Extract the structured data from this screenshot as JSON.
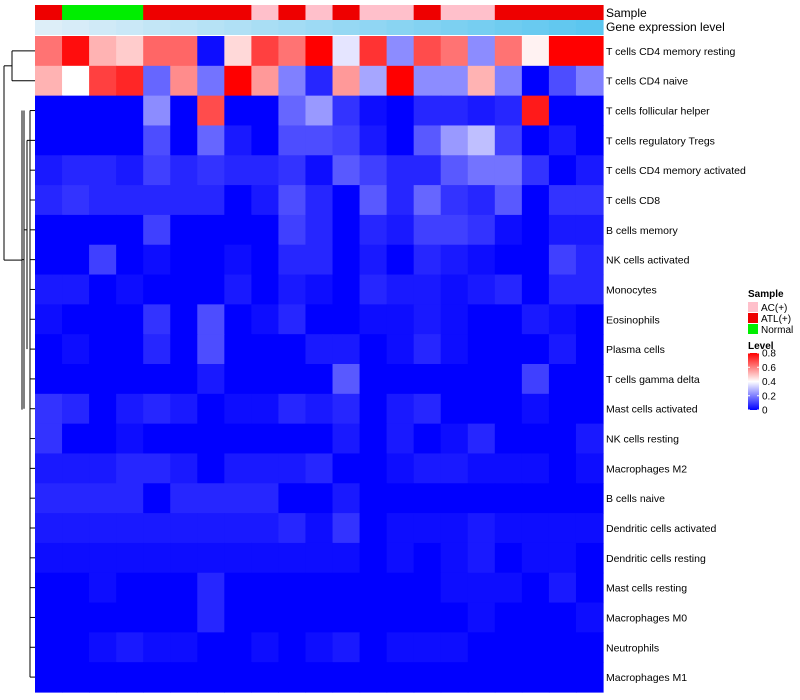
{
  "chart_data": {
    "type": "heatmap",
    "title": "",
    "annotation_tracks": [
      {
        "name": "Sample",
        "values": [
          "ATL(+)",
          "Normal",
          "Normal",
          "Normal",
          "ATL(+)",
          "ATL(+)",
          "ATL(+)",
          "ATL(+)",
          "AC(+)",
          "ATL(+)",
          "AC(+)",
          "ATL(+)",
          "AC(+)",
          "AC(+)",
          "ATL(+)",
          "AC(+)",
          "AC(+)",
          "ATL(+)",
          "ATL(+)",
          "ATL(+)",
          "ATL(+)"
        ]
      },
      {
        "name": "Gene expression level",
        "values": [
          0.0,
          0.05,
          0.1,
          0.15,
          0.2,
          0.25,
          0.3,
          0.35,
          0.4,
          0.45,
          0.5,
          0.55,
          0.6,
          0.65,
          0.7,
          0.75,
          0.8,
          0.85,
          0.9,
          0.95,
          1.0
        ]
      }
    ],
    "rows": [
      "T cells CD4 memory resting",
      "T cells CD4 naive",
      "T cells follicular helper",
      "T cells regulatory  Tregs",
      "T cells CD4 memory activated",
      "T cells CD8",
      "B cells memory",
      "NK cells activated",
      "Monocytes",
      "Eosinophils",
      "Plasma cells",
      "T cells gamma delta",
      "Mast cells activated",
      "NK cells resting",
      "Macrophages M2",
      "B cells naive",
      "Dendritic cells activated",
      "Dendritic cells resting",
      "Mast cells resting",
      "Macrophages M0",
      "Neutrophils",
      "Macrophages M1"
    ],
    "values": [
      [
        0.62,
        0.78,
        0.52,
        0.48,
        0.64,
        0.64,
        0.02,
        0.46,
        0.7,
        0.62,
        0.8,
        0.36,
        0.72,
        0.22,
        0.68,
        0.62,
        0.22,
        0.62,
        0.42,
        0.8,
        0.8
      ],
      [
        0.52,
        0.4,
        0.7,
        0.74,
        0.16,
        0.58,
        0.18,
        0.8,
        0.56,
        0.2,
        0.06,
        0.56,
        0.26,
        0.8,
        0.22,
        0.22,
        0.52,
        0.2,
        0.0,
        0.12,
        0.2
      ],
      [
        0.0,
        0.0,
        0.0,
        0.0,
        0.22,
        0.0,
        0.68,
        0.0,
        0.0,
        0.16,
        0.24,
        0.08,
        0.02,
        0.0,
        0.06,
        0.06,
        0.04,
        0.06,
        0.76,
        0.0,
        0.0
      ],
      [
        0.0,
        0.0,
        0.0,
        0.0,
        0.12,
        0.0,
        0.16,
        0.04,
        0.0,
        0.12,
        0.12,
        0.1,
        0.04,
        0.0,
        0.14,
        0.24,
        0.3,
        0.1,
        0.0,
        0.04,
        0.0
      ],
      [
        0.04,
        0.06,
        0.06,
        0.04,
        0.1,
        0.06,
        0.08,
        0.06,
        0.06,
        0.08,
        0.02,
        0.14,
        0.1,
        0.06,
        0.06,
        0.14,
        0.18,
        0.18,
        0.08,
        0.0,
        0.04
      ],
      [
        0.06,
        0.08,
        0.06,
        0.06,
        0.06,
        0.06,
        0.06,
        0.0,
        0.04,
        0.12,
        0.06,
        0.0,
        0.14,
        0.06,
        0.16,
        0.08,
        0.06,
        0.14,
        0.0,
        0.08,
        0.08
      ],
      [
        0.0,
        0.0,
        0.0,
        0.0,
        0.1,
        0.0,
        0.0,
        0.0,
        0.0,
        0.1,
        0.06,
        0.0,
        0.06,
        0.04,
        0.1,
        0.1,
        0.08,
        0.02,
        0.0,
        0.04,
        0.04
      ],
      [
        0.0,
        0.0,
        0.1,
        0.0,
        0.02,
        0.0,
        0.0,
        0.02,
        0.0,
        0.06,
        0.06,
        0.0,
        0.04,
        0.0,
        0.06,
        0.04,
        0.02,
        0.0,
        0.0,
        0.1,
        0.06
      ],
      [
        0.04,
        0.04,
        0.0,
        0.02,
        0.0,
        0.0,
        0.0,
        0.04,
        0.0,
        0.04,
        0.02,
        0.0,
        0.06,
        0.04,
        0.04,
        0.02,
        0.04,
        0.06,
        0.0,
        0.06,
        0.06
      ],
      [
        0.02,
        0.0,
        0.0,
        0.0,
        0.08,
        0.0,
        0.12,
        0.0,
        0.02,
        0.06,
        0.0,
        0.0,
        0.02,
        0.02,
        0.04,
        0.02,
        0.0,
        0.0,
        0.04,
        0.02,
        0.0
      ],
      [
        0.0,
        0.02,
        0.0,
        0.0,
        0.06,
        0.0,
        0.12,
        0.0,
        0.0,
        0.0,
        0.04,
        0.04,
        0.0,
        0.02,
        0.06,
        0.02,
        0.0,
        0.0,
        0.0,
        0.04,
        0.0
      ],
      [
        0.0,
        0.0,
        0.0,
        0.0,
        0.0,
        0.0,
        0.04,
        0.0,
        0.0,
        0.0,
        0.0,
        0.14,
        0.0,
        0.0,
        0.0,
        0.0,
        0.0,
        0.0,
        0.1,
        0.0,
        0.0
      ],
      [
        0.08,
        0.06,
        0.0,
        0.04,
        0.06,
        0.04,
        0.0,
        0.02,
        0.02,
        0.06,
        0.04,
        0.06,
        0.0,
        0.04,
        0.06,
        0.0,
        0.0,
        0.0,
        0.02,
        0.0,
        0.0
      ],
      [
        0.08,
        0.0,
        0.0,
        0.02,
        0.0,
        0.0,
        0.0,
        0.0,
        0.0,
        0.0,
        0.0,
        0.04,
        0.0,
        0.04,
        0.0,
        0.02,
        0.06,
        0.0,
        0.0,
        0.0,
        0.04
      ],
      [
        0.04,
        0.04,
        0.04,
        0.06,
        0.06,
        0.04,
        0.0,
        0.04,
        0.04,
        0.04,
        0.06,
        0.0,
        0.0,
        0.02,
        0.04,
        0.04,
        0.02,
        0.02,
        0.02,
        0.0,
        0.02
      ],
      [
        0.06,
        0.06,
        0.06,
        0.06,
        0.0,
        0.06,
        0.06,
        0.06,
        0.06,
        0.0,
        0.0,
        0.04,
        0.0,
        0.0,
        0.0,
        0.0,
        0.0,
        0.0,
        0.0,
        0.0,
        0.0
      ],
      [
        0.04,
        0.04,
        0.04,
        0.04,
        0.04,
        0.04,
        0.04,
        0.04,
        0.04,
        0.06,
        0.02,
        0.08,
        0.0,
        0.02,
        0.02,
        0.02,
        0.04,
        0.02,
        0.02,
        0.02,
        0.02
      ],
      [
        0.02,
        0.02,
        0.02,
        0.02,
        0.02,
        0.02,
        0.02,
        0.02,
        0.02,
        0.02,
        0.02,
        0.02,
        0.0,
        0.02,
        0.0,
        0.02,
        0.04,
        0.0,
        0.02,
        0.02,
        0.0
      ],
      [
        0.0,
        0.0,
        0.02,
        0.0,
        0.0,
        0.0,
        0.06,
        0.0,
        0.0,
        0.0,
        0.0,
        0.0,
        0.0,
        0.0,
        0.0,
        0.02,
        0.02,
        0.02,
        0.0,
        0.04,
        0.0
      ],
      [
        0.0,
        0.0,
        0.0,
        0.0,
        0.0,
        0.0,
        0.06,
        0.0,
        0.0,
        0.0,
        0.0,
        0.0,
        0.0,
        0.0,
        0.0,
        0.0,
        0.02,
        0.0,
        0.0,
        0.0,
        0.02
      ],
      [
        0.0,
        0.0,
        0.02,
        0.04,
        0.02,
        0.02,
        0.0,
        0.0,
        0.02,
        0.0,
        0.02,
        0.04,
        0.0,
        0.02,
        0.02,
        0.02,
        0.0,
        0.0,
        0.0,
        0.0,
        0.0
      ],
      [
        0.0,
        0.0,
        0.0,
        0.0,
        0.0,
        0.0,
        0.0,
        0.0,
        0.0,
        0.0,
        0.0,
        0.0,
        0.0,
        0.0,
        0.0,
        0.0,
        0.0,
        0.0,
        0.0,
        0.0,
        0.0
      ]
    ],
    "color_scale": {
      "low": "#0000ff",
      "mid": "#ffffff",
      "high": "#ff0000",
      "min": 0,
      "mid_value": 0.4,
      "max": 0.8
    },
    "annotation_colors": {
      "Sample": {
        "AC(+)": "#ffc0cb",
        "ATL(+)": "#ee0000",
        "Normal": "#00ee00"
      },
      "Gene expression level": {
        "low": "#ddeef8",
        "high": "#5cc6ef"
      }
    },
    "legend": {
      "sample_title": "Sample",
      "sample_entries": [
        "AC(+)",
        "ATL(+)",
        "Normal"
      ],
      "level_title": "Level",
      "level_ticks": [
        "0.8",
        "0.6",
        "0.4",
        "0.2",
        "0"
      ],
      "level_tick_values": [
        0.8,
        0.6,
        0.4,
        0.2,
        0
      ],
      "placement": "right"
    },
    "dendrogram": "rows"
  }
}
